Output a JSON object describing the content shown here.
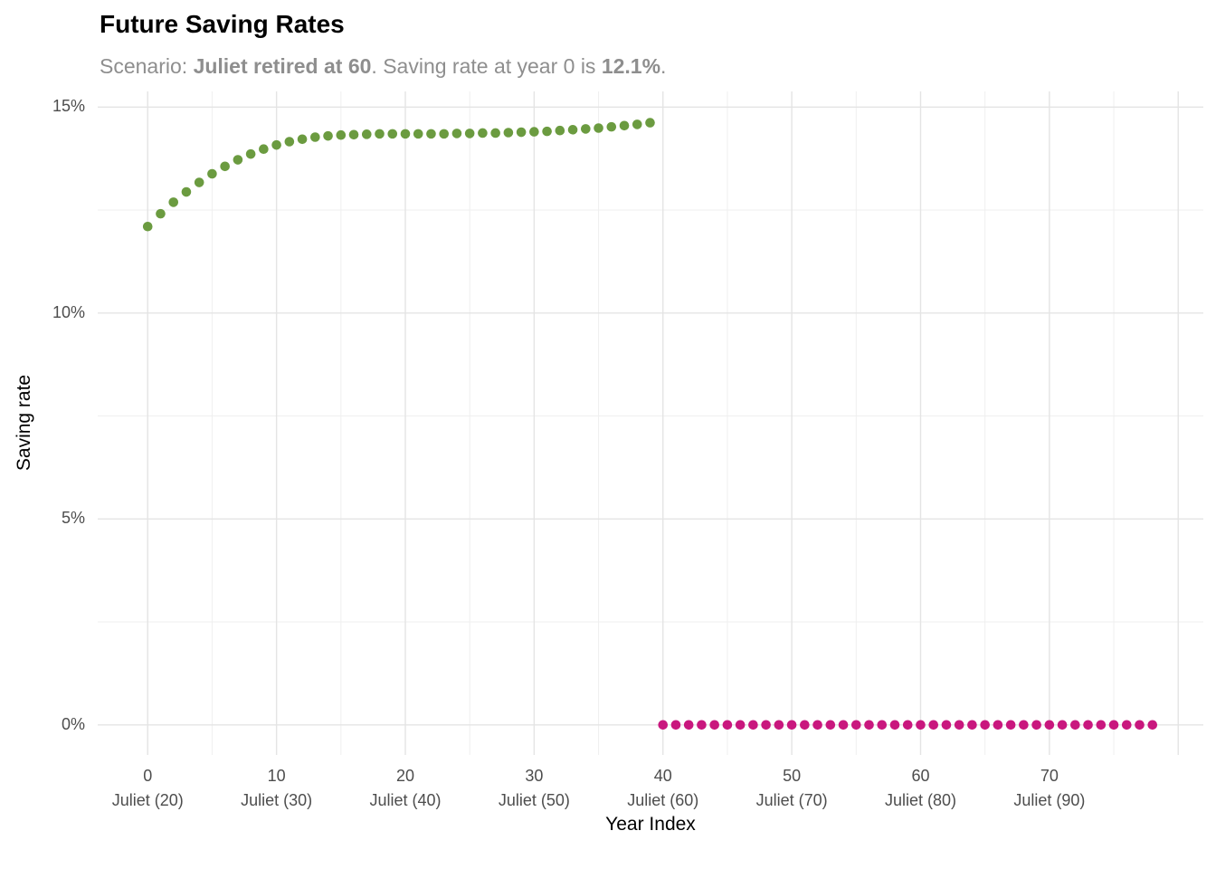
{
  "header": {
    "title": "Future Saving Rates",
    "subtitle_parts": [
      {
        "text": "Scenario: ",
        "bold": false
      },
      {
        "text": "Juliet retired at 60",
        "bold": true
      },
      {
        "text": ". Saving rate at year 0 is ",
        "bold": false
      },
      {
        "text": "12.1%",
        "bold": true
      },
      {
        "text": ".",
        "bold": false
      }
    ]
  },
  "chart_data": {
    "type": "scatter",
    "title": "Future Saving Rates",
    "subtitle": "Scenario: Juliet retired at 60. Saving rate at year 0 is 12.1%.",
    "xlabel": "Year Index",
    "ylabel": "Saving rate",
    "xlim": [
      -3.88,
      81.95
    ],
    "ylim": [
      -0.73,
      15.38
    ],
    "grid": true,
    "legend": "none",
    "point_radius": 5.3,
    "x_major_ticks": [
      {
        "value": 0,
        "label": "0",
        "sublabel": "Juliet (20)"
      },
      {
        "value": 10,
        "label": "10",
        "sublabel": "Juliet (30)"
      },
      {
        "value": 20,
        "label": "20",
        "sublabel": "Juliet (40)"
      },
      {
        "value": 30,
        "label": "30",
        "sublabel": "Juliet (50)"
      },
      {
        "value": 40,
        "label": "40",
        "sublabel": "Juliet (60)"
      },
      {
        "value": 50,
        "label": "50",
        "sublabel": "Juliet (70)"
      },
      {
        "value": 60,
        "label": "60",
        "sublabel": "Juliet (80)"
      },
      {
        "value": 70,
        "label": "70",
        "sublabel": "Juliet (90)"
      }
    ],
    "x_extra_gridlines": [
      80
    ],
    "x_minor_gridlines": [
      5,
      15,
      25,
      35,
      45,
      55,
      65,
      75
    ],
    "y_major_ticks": [
      {
        "value": 0,
        "label": "0%"
      },
      {
        "value": 5,
        "label": "5%"
      },
      {
        "value": 10,
        "label": "10%"
      },
      {
        "value": 15,
        "label": "15%"
      }
    ],
    "y_minor_gridlines": [
      2.5,
      7.5,
      12.5
    ],
    "series": [
      {
        "name": "saving-rate-working-years",
        "color": "#6b9b40",
        "x": [
          0,
          1,
          2,
          3,
          4,
          5,
          6,
          7,
          8,
          9,
          10,
          11,
          12,
          13,
          14,
          15,
          16,
          17,
          18,
          19,
          20,
          21,
          22,
          23,
          24,
          25,
          26,
          27,
          28,
          29,
          30,
          31,
          32,
          33,
          34,
          35,
          36,
          37,
          38,
          39
        ],
        "y": [
          12.1,
          12.41,
          12.69,
          12.94,
          13.17,
          13.38,
          13.56,
          13.72,
          13.86,
          13.98,
          14.08,
          14.16,
          14.22,
          14.27,
          14.3,
          14.32,
          14.33,
          14.34,
          14.35,
          14.35,
          14.35,
          14.35,
          14.35,
          14.35,
          14.36,
          14.36,
          14.37,
          14.37,
          14.38,
          14.39,
          14.4,
          14.41,
          14.43,
          14.45,
          14.47,
          14.49,
          14.52,
          14.55,
          14.58,
          14.62
        ]
      },
      {
        "name": "saving-rate-retirement-years",
        "color": "#c9177e",
        "x": [
          40,
          41,
          42,
          43,
          44,
          45,
          46,
          47,
          48,
          49,
          50,
          51,
          52,
          53,
          54,
          55,
          56,
          57,
          58,
          59,
          60,
          61,
          62,
          63,
          64,
          65,
          66,
          67,
          68,
          69,
          70,
          71,
          72,
          73,
          74,
          75,
          76,
          77,
          78
        ],
        "y": [
          0,
          0,
          0,
          0,
          0,
          0,
          0,
          0,
          0,
          0,
          0,
          0,
          0,
          0,
          0,
          0,
          0,
          0,
          0,
          0,
          0,
          0,
          0,
          0,
          0,
          0,
          0,
          0,
          0,
          0,
          0,
          0,
          0,
          0,
          0,
          0,
          0,
          0,
          0
        ]
      }
    ]
  },
  "colors": {
    "background": "#ffffff",
    "grid_major": "#e4e4e4",
    "grid_minor": "#efefef",
    "tick_label": "#4d4d4d",
    "subtitle": "#8e8e8e",
    "title": "#000000",
    "series_working": "#6b9b40",
    "series_retired": "#c9177e"
  }
}
